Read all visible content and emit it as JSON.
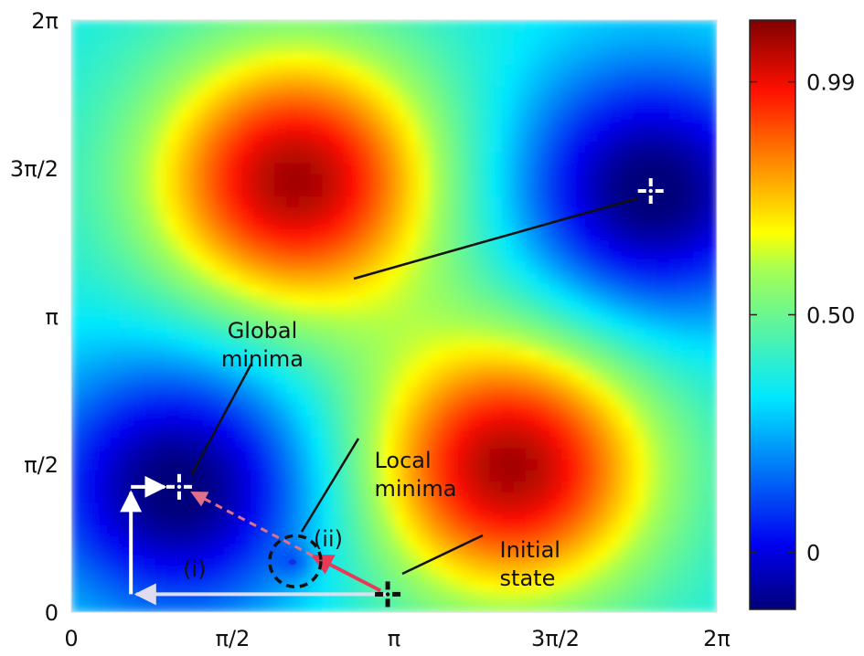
{
  "chart_data": {
    "type": "heatmap",
    "title": "",
    "xlabel": "",
    "ylabel": "",
    "xlim": [
      0,
      6.2832
    ],
    "ylim": [
      0,
      6.2832
    ],
    "x_ticks": [
      {
        "value": 0,
        "label": "0"
      },
      {
        "value": 1.5708,
        "label": "π/2"
      },
      {
        "value": 3.1416,
        "label": "π"
      },
      {
        "value": 4.7124,
        "label": "3π/2"
      },
      {
        "value": 6.2832,
        "label": "2π"
      }
    ],
    "y_ticks": [
      {
        "value": 0,
        "label": "0"
      },
      {
        "value": 1.5708,
        "label": "π/2"
      },
      {
        "value": 3.1416,
        "label": "π"
      },
      {
        "value": 4.7124,
        "label": "3π/2"
      },
      {
        "value": 6.2832,
        "label": "2π"
      }
    ],
    "colorbar": {
      "ticks": [
        {
          "value": 0,
          "label": "0"
        },
        {
          "value": 0.5,
          "label": "0.50"
        },
        {
          "value": 0.99,
          "label": "0.99"
        }
      ],
      "range": [
        -0.12,
        1.12
      ],
      "colormap": "jet"
    },
    "maxima": [
      [
        2.18,
        4.59
      ],
      [
        4.27,
        1.55
      ]
    ],
    "global_minima": [
      [
        1.05,
        1.33
      ],
      [
        5.64,
        4.47
      ]
    ],
    "local_minimum": [
      2.18,
      0.54
    ],
    "initial_state": [
      3.08,
      0.19
    ],
    "paths": [
      {
        "label": "(i)",
        "points": [
          [
            3.08,
            0.19
          ],
          [
            0.58,
            0.19
          ],
          [
            0.58,
            1.33
          ],
          [
            1.05,
            1.33
          ]
        ],
        "style": "solid"
      },
      {
        "label": "(ii)",
        "points": [
          [
            3.08,
            0.19
          ],
          [
            2.35,
            0.6
          ]
        ],
        "style": "solid"
      },
      {
        "label": "",
        "points": [
          [
            2.35,
            0.6
          ],
          [
            1.05,
            1.33
          ]
        ],
        "style": "dashed"
      }
    ],
    "annotations": [
      {
        "id": "global-minima",
        "lines": [
          "Global",
          "minima"
        ],
        "value_x": 1.86,
        "value_y": 2.91
      },
      {
        "id": "local-minima",
        "lines": [
          "Local",
          "minima"
        ],
        "value_x": 2.95,
        "value_y": 1.53
      },
      {
        "id": "initial-state",
        "lines": [
          "Initial",
          "state"
        ],
        "value_x": 4.17,
        "value_y": 0.58
      },
      {
        "id": "path-i",
        "lines": [
          "(i)"
        ],
        "value_x": 1.2,
        "value_y": 0.38
      },
      {
        "id": "path-ii",
        "lines": [
          "(ii)"
        ],
        "value_x": 2.5,
        "value_y": 0.7
      }
    ],
    "colors": {
      "path_i_start": "#b8a8d8",
      "path_ii": "#e83a58",
      "dashed": "#e0708a",
      "marker_light": "#ffffff",
      "marker_dark": "#111111"
    }
  }
}
